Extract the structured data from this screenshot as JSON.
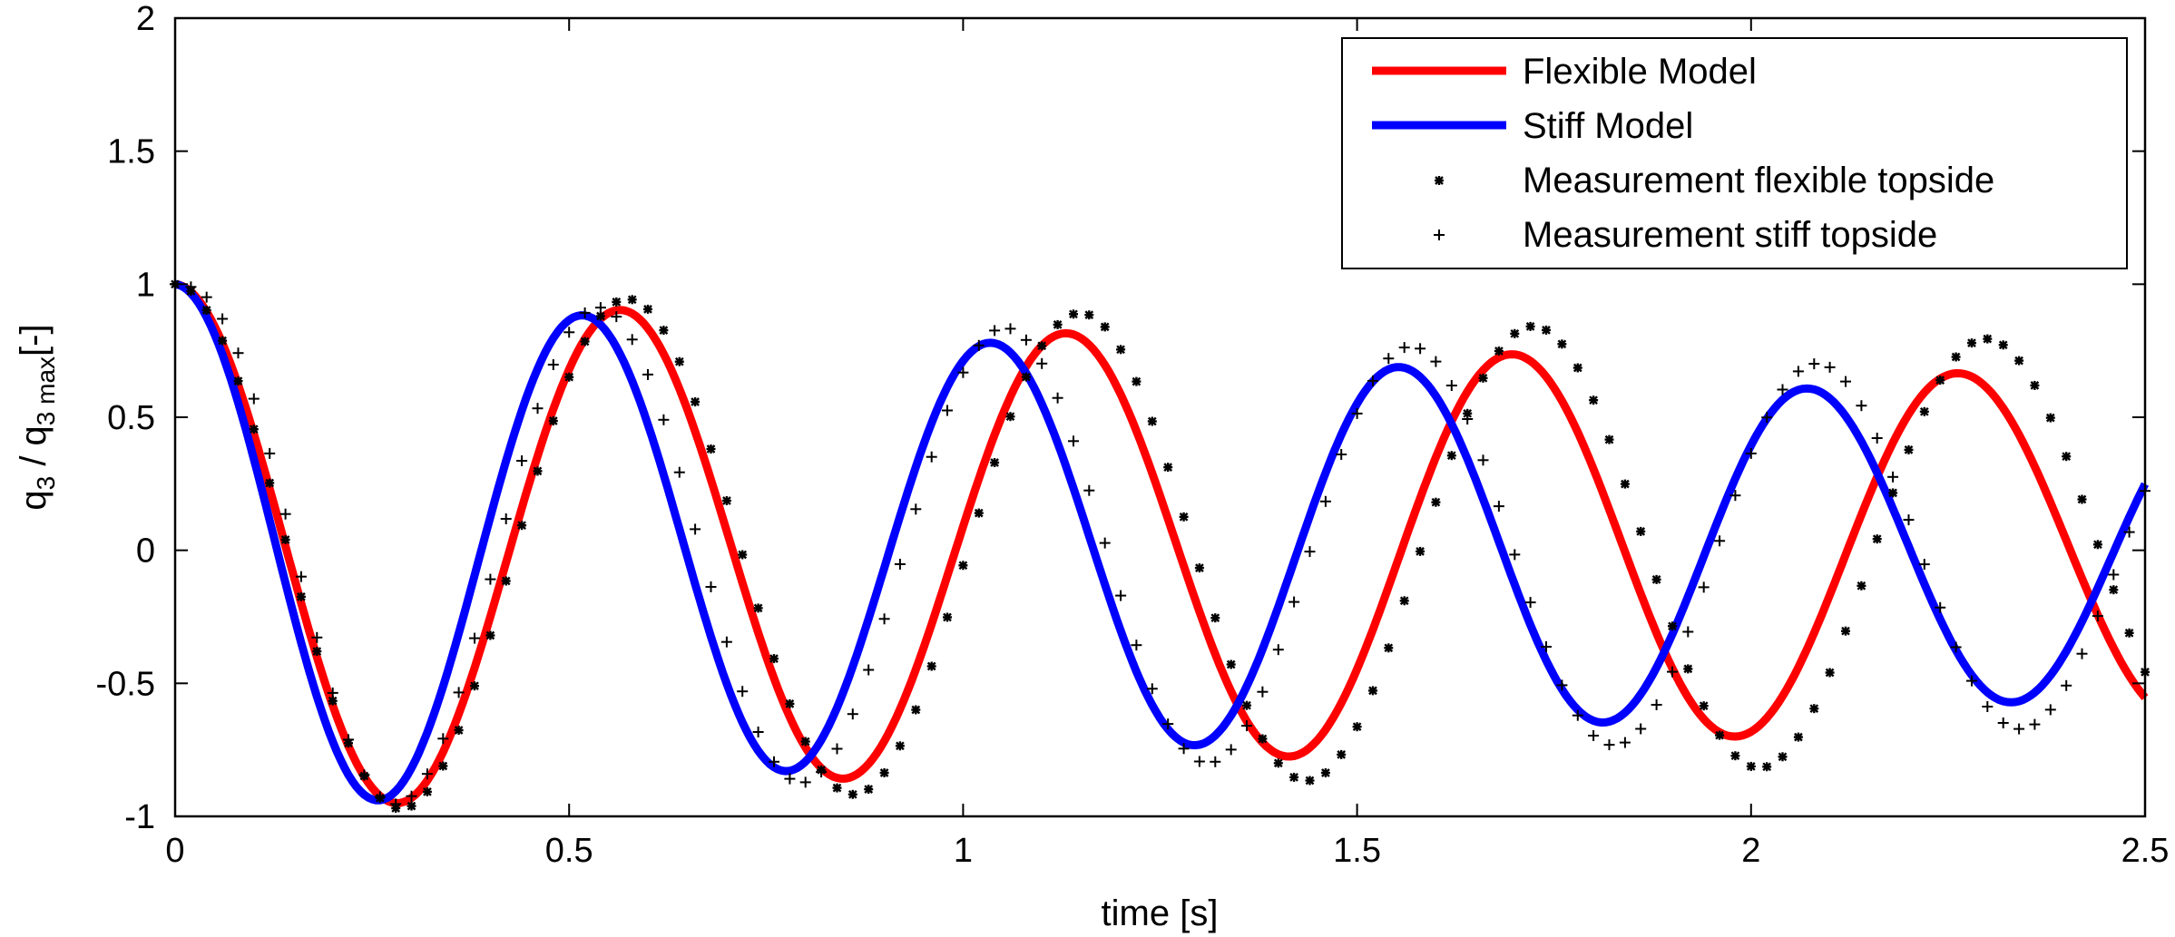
{
  "chart_data": {
    "type": "line",
    "title": "",
    "xlabel": "time [s]",
    "ylabel_main": "q",
    "ylabel_sub1": "3",
    "ylabel_mid": " / q",
    "ylabel_sub2": "3 max",
    "ylabel_tail": "[-]",
    "xlim": [
      0,
      2.5
    ],
    "ylim": [
      -1,
      2
    ],
    "xticks": [
      0,
      0.5,
      1,
      1.5,
      2,
      2.5
    ],
    "xtick_labels": [
      "0",
      "0.5",
      "1",
      "1.5",
      "2",
      "2.5"
    ],
    "yticks": [
      -1,
      -0.5,
      0,
      0.5,
      1,
      1.5,
      2
    ],
    "ytick_labels": [
      "-1",
      "-0.5",
      "0",
      "0.5",
      "1",
      "1.5",
      "2"
    ],
    "grid": false,
    "legend_position": "top-right",
    "sample_step": 0.02,
    "series": [
      {
        "name": "Flexible Model",
        "style": "line",
        "color": "#ff0000",
        "model": {
          "freq_hz": 1.767,
          "decay": 0.18
        }
      },
      {
        "name": "Stiff Model",
        "style": "line",
        "color": "#0000ff",
        "model": {
          "freq_hz": 1.93,
          "decay": 0.24
        }
      },
      {
        "name": "Measurement flexible topside",
        "style": "asterisk",
        "color": "#000000",
        "model": {
          "freq_hz": 1.74,
          "decay": 0.1
        }
      },
      {
        "name": "Measurement stiff topside",
        "style": "plus",
        "color": "#000000",
        "model": {
          "freq_hz": 1.94,
          "decay": 0.17,
          "phase": -0.28
        }
      }
    ]
  }
}
